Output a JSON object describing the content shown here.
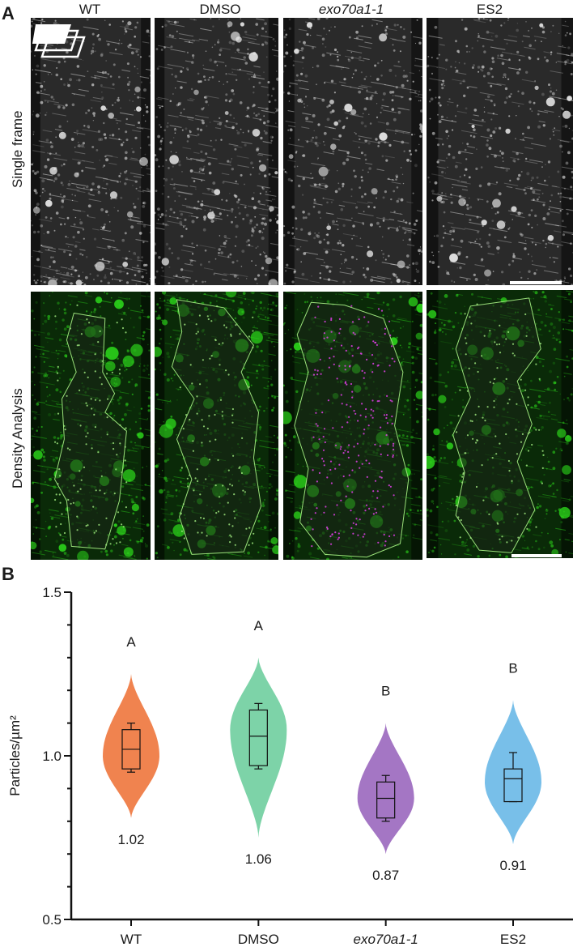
{
  "panel_a": {
    "letter": "A",
    "columns": [
      {
        "label": "WT",
        "italic": false
      },
      {
        "label": "DMSO",
        "italic": false
      },
      {
        "label": "exo70a1-1",
        "italic": true
      },
      {
        "label": "ES2",
        "italic": false
      }
    ],
    "rows": [
      "Single frame",
      "Density Analysis"
    ],
    "colors": {
      "grayscale_bg": "#2a2a2a",
      "grayscale_spot": "#e8e8e8",
      "green_bg": "#0a2a08",
      "green_spot": "#2bd21a",
      "roi_outline": "#9ae07a",
      "particle_magenta": "#e040e8",
      "scale_bar": "#ffffff"
    },
    "icons": [
      "stack-frames-icon"
    ]
  },
  "panel_b": {
    "letter": "B",
    "chart_data": {
      "type": "violin",
      "title": "",
      "xlabel": "",
      "ylabel": "Particles/µm²",
      "ylim": [
        0.5,
        1.5
      ],
      "yticks": [
        "0.5",
        "1.0",
        "1.5"
      ],
      "categories": [
        "WT",
        "DMSO",
        "exo70a1-1",
        "ES2"
      ],
      "category_italic": [
        false,
        false,
        true,
        false
      ],
      "means": [
        1.02,
        1.06,
        0.87,
        0.91
      ],
      "mean_labels": [
        "1.02",
        "1.06",
        "0.87",
        "0.91"
      ],
      "significance_letters": [
        "A",
        "A",
        "B",
        "B"
      ],
      "colors": [
        "#f0834f",
        "#7dd3a8",
        "#a476c4",
        "#78bfe9"
      ],
      "violins": [
        {
          "min": 0.81,
          "max": 1.25,
          "widest_at": 1.0
        },
        {
          "min": 0.75,
          "max": 1.3,
          "widest_at": 1.08
        },
        {
          "min": 0.7,
          "max": 1.1,
          "widest_at": 0.87
        },
        {
          "min": 0.73,
          "max": 1.17,
          "widest_at": 0.92
        }
      ],
      "boxes": [
        {
          "whisker_low": 0.95,
          "q1": 0.96,
          "median": 1.02,
          "q3": 1.08,
          "whisker_high": 1.1
        },
        {
          "whisker_low": 0.96,
          "q1": 0.97,
          "median": 1.06,
          "q3": 1.14,
          "whisker_high": 1.16
        },
        {
          "whisker_low": 0.8,
          "q1": 0.81,
          "median": 0.87,
          "q3": 0.92,
          "whisker_high": 0.94
        },
        {
          "whisker_low": 0.86,
          "q1": 0.86,
          "median": 0.93,
          "q3": 0.96,
          "whisker_high": 1.01
        }
      ]
    }
  }
}
